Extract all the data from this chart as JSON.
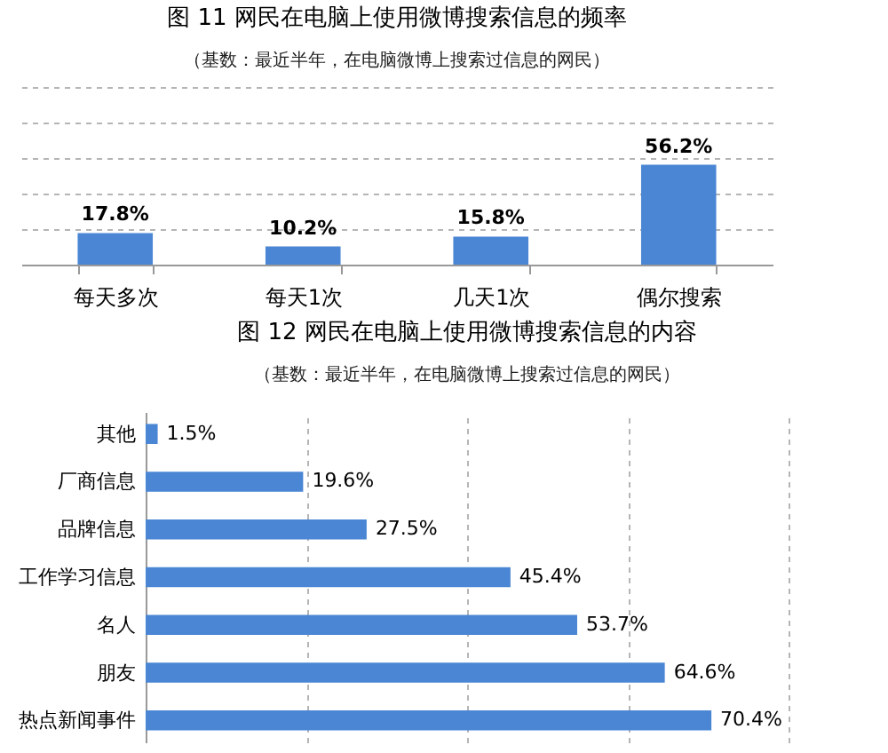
{
  "chart_data": [
    {
      "type": "bar",
      "title": "图 11 网民在电脑上使用微博搜索信息的频率",
      "subtitle": "（基数：最近半年，在电脑微博上搜索过信息的网民）",
      "categories": [
        "每天多次",
        "每天1次",
        "几天1次",
        "偶尔搜索"
      ],
      "values": [
        17.8,
        10.2,
        15.8,
        56.2
      ],
      "value_labels": [
        "17.8%",
        "10.2%",
        "15.8%",
        "56.2%"
      ],
      "color": "#4a86d4",
      "ylim": [
        0,
        100
      ],
      "yticks": [
        {
          "value": 20,
          "label": null
        },
        {
          "value": 40,
          "label": null
        },
        {
          "value": 60,
          "label": null
        },
        {
          "value": 80,
          "label": null
        },
        {
          "value": 100,
          "label": null
        }
      ],
      "grid": "y",
      "tick_labels": "x"
    },
    {
      "type": "bar",
      "orientation": "horizontal",
      "title": "图 12 网民在电脑上使用微博搜索信息的内容",
      "subtitle": "（基数：最近半年，在电脑微博上搜索过信息的网民）",
      "categories": [
        "其他",
        "厂商信息",
        "品牌信息",
        "工作学习信息",
        "名人",
        "朋友",
        "热点新闻事件"
      ],
      "values": [
        1.5,
        19.6,
        27.5,
        45.4,
        53.7,
        64.6,
        70.4
      ],
      "value_labels": [
        "1.5%",
        "19.6%",
        "27.5%",
        "45.4%",
        "53.7%",
        "64.6%",
        "70.4%"
      ],
      "color": "#4a86d4",
      "xlim": [
        0,
        80
      ],
      "xticks": [
        {
          "value": 20,
          "label": null
        },
        {
          "value": 40,
          "label": null
        },
        {
          "value": 60,
          "label": null
        },
        {
          "value": 80,
          "label": null
        }
      ],
      "grid": "x",
      "tick_labels": "y"
    }
  ]
}
